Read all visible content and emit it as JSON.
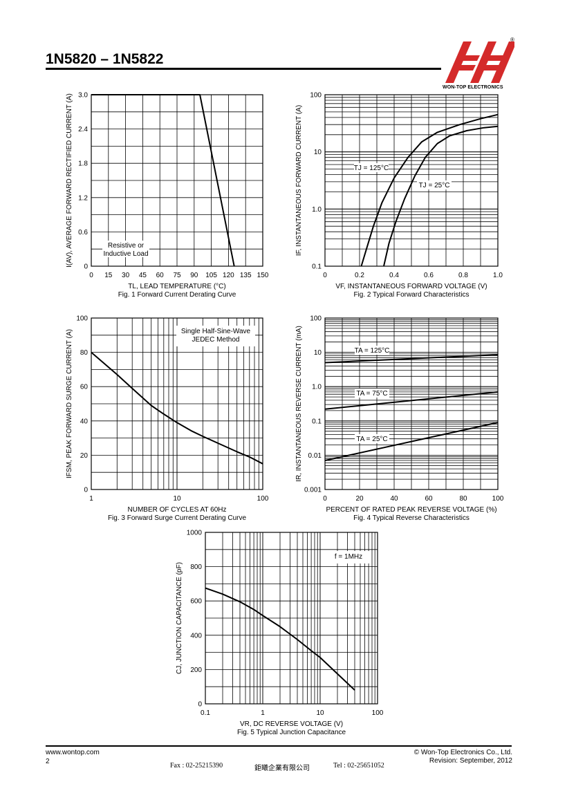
{
  "header": {
    "title": "1N5820 – 1N5822",
    "company": "WON-TOP ELECTRONICS",
    "registered": "®"
  },
  "footer": {
    "website": "www.wontop.com",
    "page_number": "2",
    "copyright": "© Won-Top Electronics Co., Ltd.",
    "revision": "Revision: September, 2012",
    "fax": "Fax : 02-25215390",
    "company_cn": "鉅曦企業有限公司",
    "tel": "Tel : 02-25651052"
  },
  "chart_data": [
    {
      "type": "line",
      "caption": "Fig. 1 Forward Current Derating Curve",
      "xlabel": "TL, LEAD TEMPERATURE (°C)",
      "ylabel": "I(AV), AVERAGE FORWARD RECTIFIED CURRENT (A)",
      "xlim": [
        0,
        150
      ],
      "ylim": [
        0,
        3.0
      ],
      "xticks": [
        "0",
        "15",
        "30",
        "45",
        "60",
        "75",
        "90",
        "105",
        "120",
        "135",
        "150"
      ],
      "yticks": [
        "0",
        "0.6",
        "1.2",
        "1.8",
        "2.4",
        "3.0"
      ],
      "annotation": [
        "Resistive or",
        "Inductive Load"
      ],
      "series": [
        {
          "x": [
            0,
            95,
            125
          ],
          "y": [
            3.0,
            3.0,
            0
          ]
        }
      ]
    },
    {
      "type": "line",
      "caption": "Fig. 2 Typical Forward Characteristics",
      "xlabel": "VF, INSTANTANEOUS FORWARD VOLTAGE (V)",
      "ylabel": "IF, INSTANTANEOUS FORWARD CURRENT (A)",
      "xlim": [
        0,
        1.0
      ],
      "ylim": [
        0.1,
        100
      ],
      "yscale": "log",
      "xticks": [
        "0",
        "0.2",
        "0.4",
        "0.6",
        "0.8",
        "1.0"
      ],
      "yticks": [
        "0.1",
        "1.0",
        "10",
        "100"
      ],
      "series": [
        {
          "name": "TJ = 125°C",
          "x": [
            0.21,
            0.24,
            0.28,
            0.33,
            0.4,
            0.48,
            0.56,
            0.65,
            0.78,
            0.9,
            1.0
          ],
          "y": [
            0.1,
            0.2,
            0.5,
            1.3,
            3.5,
            8,
            15,
            22,
            30,
            38,
            45
          ]
        },
        {
          "name": "TJ = 25°C",
          "x": [
            0.34,
            0.37,
            0.41,
            0.46,
            0.52,
            0.58,
            0.65,
            0.72,
            0.82,
            0.92,
            1.0
          ],
          "y": [
            0.1,
            0.25,
            0.6,
            1.5,
            3.8,
            8,
            14,
            19,
            23.5,
            26.5,
            28
          ]
        }
      ]
    },
    {
      "type": "line",
      "caption": "Fig. 3 Forward Surge Current Derating Curve",
      "xlabel": "NUMBER OF CYCLES AT 60Hz",
      "ylabel": "IFSM, PEAK FORWARD SURGE CURRENT (A)",
      "xlim": [
        1,
        100
      ],
      "xscale": "log",
      "ylim": [
        0,
        100
      ],
      "xticks": [
        "1",
        "10",
        "100"
      ],
      "yticks": [
        "0",
        "20",
        "40",
        "60",
        "80",
        "100"
      ],
      "annotation": [
        "Single Half-Sine-Wave",
        "JEDEC Method"
      ],
      "series": [
        {
          "x": [
            1,
            2,
            3,
            5,
            7,
            10,
            15,
            20,
            30,
            50,
            70,
            100
          ],
          "y": [
            80,
            67,
            59,
            49,
            44,
            39,
            34,
            31,
            27,
            22,
            19,
            15
          ]
        }
      ]
    },
    {
      "type": "line",
      "caption": "Fig. 4 Typical Reverse Characteristics",
      "xlabel": "PERCENT OF RATED PEAK REVERSE VOLTAGE (%)",
      "ylabel": "IR, INSTANTANEOUS REVERSE CURRENT (mA)",
      "xlim": [
        0,
        100
      ],
      "ylim": [
        0.001,
        100
      ],
      "yscale": "log",
      "xticks": [
        "0",
        "20",
        "40",
        "60",
        "80",
        "100"
      ],
      "yticks": [
        "0.001",
        "0.01",
        "0.1",
        "1.0",
        "10",
        "100"
      ],
      "series": [
        {
          "name": "TA = 125°C",
          "x": [
            0,
            100
          ],
          "y": [
            5,
            8.5
          ]
        },
        {
          "name": "TA = 75°C",
          "x": [
            0,
            100
          ],
          "y": [
            0.22,
            0.7
          ]
        },
        {
          "name": "TA = 25°C",
          "x": [
            0,
            100
          ],
          "y": [
            0.007,
            0.09
          ]
        }
      ]
    },
    {
      "type": "line",
      "caption": "Fig. 5 Typical Junction Capacitance",
      "xlabel": "VR, DC REVERSE VOLTAGE (V)",
      "ylabel": "CJ, JUNCTION CAPACITANCE (pF)",
      "xlim": [
        0.1,
        100
      ],
      "xscale": "log",
      "ylim": [
        0,
        1000
      ],
      "xticks": [
        "0.1",
        "1",
        "10",
        "100"
      ],
      "yticks": [
        "0",
        "200",
        "400",
        "600",
        "800",
        "1000"
      ],
      "annotation": [
        "f = 1MHz"
      ],
      "series": [
        {
          "x": [
            0.1,
            0.2,
            0.4,
            0.7,
            1,
            2,
            4,
            7,
            10,
            20,
            40
          ],
          "y": [
            675,
            640,
            595,
            550,
            515,
            450,
            375,
            310,
            270,
            175,
            80
          ]
        }
      ]
    }
  ]
}
